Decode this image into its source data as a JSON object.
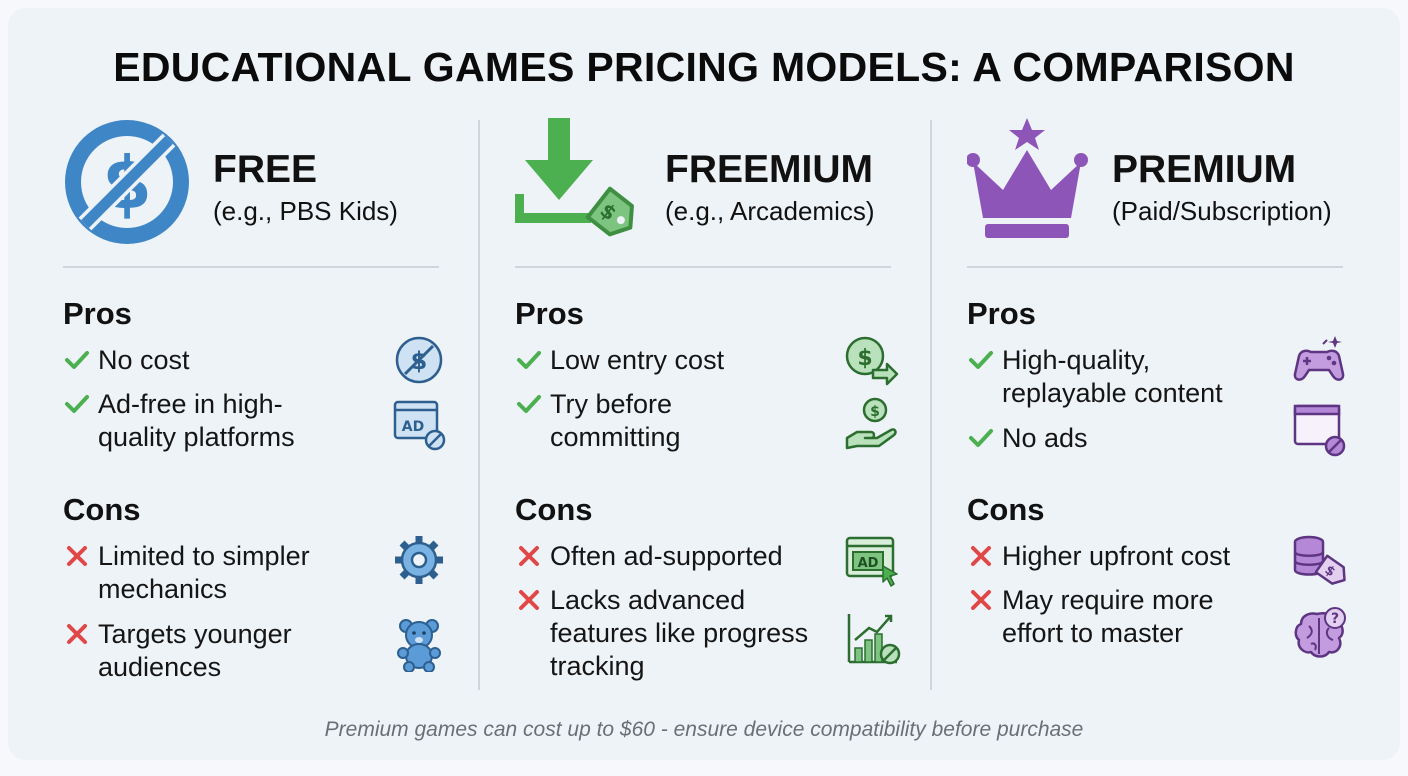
{
  "title": "EDUCATIONAL GAMES PRICING MODELS: A COMPARISON",
  "colors": {
    "free": "#3f86c6",
    "freemium": "#4caf50",
    "premium": "#8e55b8",
    "check": "#4caf50",
    "cross": "#e04848"
  },
  "columns": [
    {
      "name": "FREE",
      "subtitle": "(e.g., PBS Kids)",
      "pros_heading": "Pros",
      "cons_heading": "Cons",
      "pros": [
        {
          "lines": [
            "No cost"
          ],
          "icon": "no-dollar-icon"
        },
        {
          "lines": [
            "Ad-free in high-",
            "quality platforms"
          ],
          "icon": "ad-blocked-icon"
        }
      ],
      "cons": [
        {
          "lines": [
            "Limited to simpler",
            "mechanics"
          ],
          "icon": "gear-icon"
        },
        {
          "lines": [
            "Targets younger",
            "audiences"
          ],
          "icon": "teddy-bear-icon"
        }
      ]
    },
    {
      "name": "FREEMIUM",
      "subtitle": "(e.g., Arcademics)",
      "pros_heading": "Pros",
      "cons_heading": "Cons",
      "pros": [
        {
          "lines": [
            "Low entry cost"
          ],
          "icon": "dollar-arrow-icon"
        },
        {
          "lines": [
            "Try before",
            "committing"
          ],
          "icon": "hand-coin-icon"
        }
      ],
      "cons": [
        {
          "lines": [
            "Often ad-supported"
          ],
          "icon": "ad-window-icon"
        },
        {
          "lines": [
            "Lacks advanced",
            "features like progress",
            "tracking"
          ],
          "icon": "chart-blocked-icon"
        }
      ]
    },
    {
      "name": "PREMIUM",
      "subtitle": "(Paid/Subscription)",
      "pros_heading": "Pros",
      "cons_heading": "Cons",
      "pros": [
        {
          "lines": [
            "High-quality,",
            "replayable content"
          ],
          "icon": "gamepad-icon"
        },
        {
          "lines": [
            "No ads"
          ],
          "icon": "window-blocked-icon"
        }
      ],
      "cons": [
        {
          "lines": [
            "Higher upfront cost"
          ],
          "icon": "coins-tag-icon"
        },
        {
          "lines": [
            "May require more",
            "effort to master"
          ],
          "icon": "brain-question-icon"
        }
      ]
    }
  ],
  "footer": "Premium games can cost up to $60  - ensure device compatibility before purchase"
}
